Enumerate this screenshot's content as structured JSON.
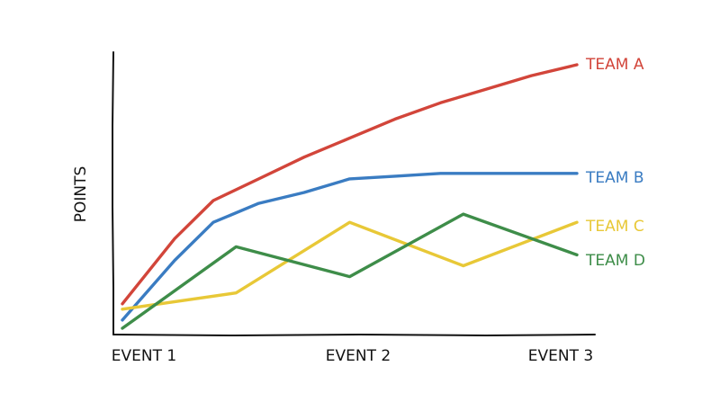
{
  "chart_data": {
    "type": "line",
    "title": "",
    "xlabel": "",
    "ylabel": "POINTS",
    "categories": [
      "EVENT 1",
      "EVENT 2",
      "EVENT 3"
    ],
    "x_range": [
      1,
      3
    ],
    "y_range": [
      0,
      100
    ],
    "grid": false,
    "legend": "inline labels at right end of each line",
    "series": [
      {
        "name": "TEAM A",
        "color": "#d2453a",
        "x": [
          1.0,
          1.23,
          1.4,
          1.6,
          1.8,
          2.0,
          2.2,
          2.4,
          2.6,
          2.8,
          3.0
        ],
        "y": [
          10,
          34,
          48,
          56,
          64,
          71,
          78,
          84,
          89,
          94,
          98
        ]
      },
      {
        "name": "TEAM B",
        "color": "#3a7cc2",
        "x": [
          1.0,
          1.23,
          1.4,
          1.6,
          1.8,
          2.0,
          2.2,
          2.4,
          2.6,
          2.8,
          3.0
        ],
        "y": [
          4,
          26,
          40,
          47,
          51,
          56,
          57,
          58,
          58,
          58,
          58
        ]
      },
      {
        "name": "TEAM C",
        "color": "#e8c837",
        "x": [
          1.0,
          1.5,
          2.0,
          2.5,
          3.0
        ],
        "y": [
          8,
          14,
          40,
          24,
          40
        ]
      },
      {
        "name": "TEAM D",
        "color": "#3e8d49",
        "x": [
          1.0,
          1.5,
          2.0,
          2.5,
          3.0
        ],
        "y": [
          1,
          31,
          20,
          43,
          28
        ]
      }
    ]
  }
}
